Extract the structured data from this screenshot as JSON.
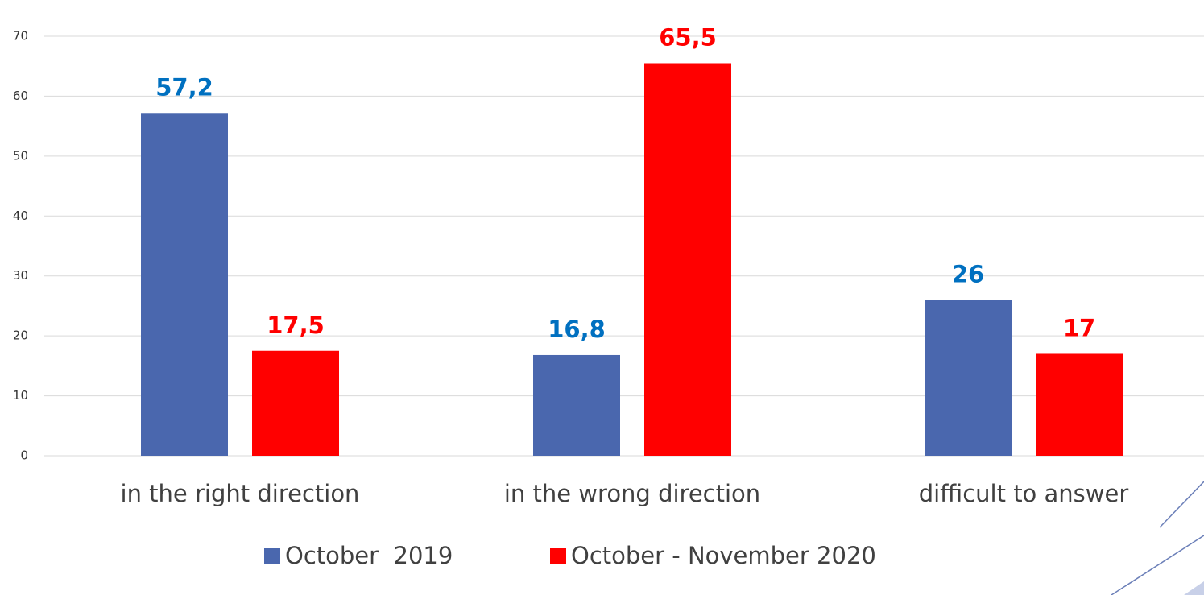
{
  "chart_data": {
    "type": "bar",
    "categories": [
      "in the right direction",
      "in the wrong direction",
      "difficult to answer"
    ],
    "series": [
      {
        "name": "October  2019",
        "color": "#4a67ae",
        "label_color": "#0070c0",
        "values": [
          57.2,
          16.8,
          26
        ],
        "value_labels": [
          "57,2",
          "16,8",
          "26"
        ]
      },
      {
        "name": "October - November 2020",
        "color": "#ff0000",
        "label_color": "#ff0000",
        "values": [
          17.5,
          65.5,
          17
        ],
        "value_labels": [
          "17,5",
          "65,5",
          "17"
        ]
      }
    ],
    "ylim": [
      0,
      70
    ],
    "yticks": [
      0,
      10,
      20,
      30,
      40,
      50,
      60,
      70
    ],
    "grid": true,
    "legend": "bottom"
  }
}
